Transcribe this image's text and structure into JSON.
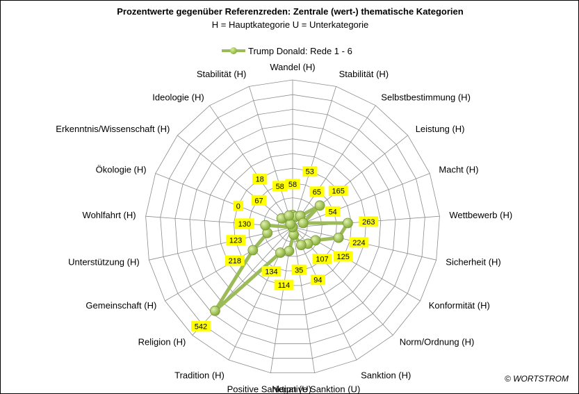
{
  "chart_data": {
    "type": "radar",
    "title": "Prozentwerte gegenüber Referenzreden: Zentrale (wert-) thematische Kategorien",
    "subtitle": "H = Hauptkategorie U = Unterkategorie",
    "categories": [
      "Wandel (H)",
      "Stabilität (H)",
      "Selbstbestimmung (H)",
      "Leistung (H)",
      "Macht (H)",
      "Wettbewerb (H)",
      "Sicherheit (H)",
      "Konformität (H)",
      "Norm/Ordnung (H)",
      "Sanktion (H)",
      "Negative Sanktion (U)",
      "Positive Sanktion (U)",
      "Tradition (H)",
      "Religion (H)",
      "Gemeinschaft (H)",
      "Unterstützung (H)",
      "Wohlfahrt (H)",
      "Ökologie (H)",
      "Erkenntnis/Wissenschaft (H)",
      "Ideologie (H)",
      "Stabilität (H)"
    ],
    "series": [
      {
        "name": "Trump Donald: Rede 1 - 6",
        "values": [
          58,
          53,
          65,
          165,
          54,
          263,
          224,
          125,
          107,
          94,
          35,
          114,
          134,
          542,
          218,
          123,
          130,
          0,
          67,
          18,
          58
        ],
        "color": "#9BBB59"
      }
    ],
    "rmax": 700,
    "grid_rings": 10,
    "grid": true,
    "legend_position": "top",
    "label_background": "#FFFF00"
  },
  "copyright": "© WORTSTROM"
}
